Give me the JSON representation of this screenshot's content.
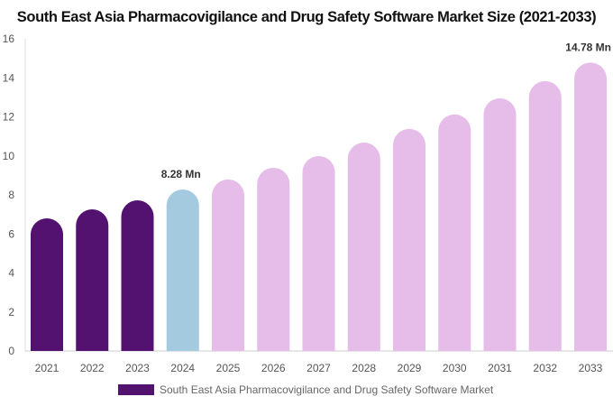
{
  "chart_data": {
    "type": "bar",
    "title": "South East Asia Pharmacovigilance and Drug Safety Software Market Size (2021-2033)",
    "categories": [
      "2021",
      "2022",
      "2023",
      "2024",
      "2025",
      "2026",
      "2027",
      "2028",
      "2029",
      "2030",
      "2031",
      "2032",
      "2033"
    ],
    "series": [
      {
        "name": "South East Asia Pharmacovigilance and Drug Safety Software Market",
        "values": [
          6.8,
          7.26,
          7.72,
          8.28,
          8.79,
          9.39,
          9.99,
          10.68,
          11.38,
          12.12,
          12.95,
          13.83,
          14.78
        ]
      }
    ],
    "data_labels": {
      "2024": "8.28 Mn",
      "2033": "14.78 Mn"
    },
    "ylim": [
      0,
      16
    ],
    "yticks": [
      0,
      2,
      4,
      6,
      8,
      10,
      12,
      14,
      16
    ],
    "xlabel": "",
    "ylabel": "",
    "grid": false,
    "legend_position": "bottom",
    "colors": {
      "historical": "#541270",
      "base_year": "#a4cadf",
      "forecast": "#e6bce8"
    }
  }
}
